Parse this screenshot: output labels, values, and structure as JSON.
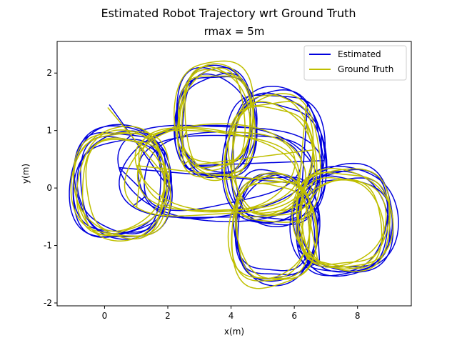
{
  "chart_data": {
    "type": "line",
    "title": "Estimated Robot Trajectory wrt Ground Truth",
    "subtitle": "rmax = 5m",
    "xlabel": "x(m)",
    "ylabel": "y(m)",
    "xlim": [
      -1.5,
      9.7
    ],
    "ylim": [
      -2.05,
      2.55
    ],
    "xticks": [
      0,
      2,
      4,
      6,
      8
    ],
    "yticks": [
      -2,
      -1,
      0,
      1,
      2
    ],
    "grid": false,
    "legend_position": "top-right",
    "series": [
      {
        "name": "Estimated",
        "color": "#0000dd",
        "loops": [
          {
            "cx": 0.5,
            "cy": 0.1,
            "rx": 1.45,
            "ry": 1.0,
            "laps": 6,
            "jitter": 0.12
          },
          {
            "cx": 3.5,
            "cy": 1.1,
            "rx": 1.2,
            "ry": 1.0,
            "laps": 6,
            "jitter": 0.12
          },
          {
            "cx": 5.4,
            "cy": 0.5,
            "rx": 1.5,
            "ry": 1.25,
            "laps": 5,
            "jitter": 0.12
          },
          {
            "cx": 7.6,
            "cy": -0.6,
            "rx": 1.45,
            "ry": 0.95,
            "laps": 6,
            "jitter": 0.12
          },
          {
            "cx": 5.4,
            "cy": -0.7,
            "rx": 1.3,
            "ry": 1.05,
            "laps": 5,
            "jitter": 0.12
          },
          {
            "cx": 3.6,
            "cy": 0.3,
            "rx": 2.9,
            "ry": 0.85,
            "laps": 4,
            "jitter": 0.15
          }
        ],
        "start": [
          0.15,
          1.45
        ]
      },
      {
        "name": "Ground Truth",
        "color": "#bfbf00",
        "loops": [
          {
            "cx": 0.55,
            "cy": 0.05,
            "rx": 1.4,
            "ry": 1.0,
            "laps": 6,
            "jitter": 0.13
          },
          {
            "cx": 3.5,
            "cy": 1.15,
            "rx": 1.15,
            "ry": 1.05,
            "laps": 6,
            "jitter": 0.13
          },
          {
            "cx": 5.3,
            "cy": 0.5,
            "rx": 1.45,
            "ry": 1.2,
            "laps": 5,
            "jitter": 0.13
          },
          {
            "cx": 7.5,
            "cy": -0.6,
            "rx": 1.4,
            "ry": 0.9,
            "laps": 6,
            "jitter": 0.13
          },
          {
            "cx": 5.3,
            "cy": -0.75,
            "rx": 1.25,
            "ry": 1.0,
            "laps": 5,
            "jitter": 0.13
          },
          {
            "cx": 3.5,
            "cy": 0.35,
            "rx": 2.85,
            "ry": 0.9,
            "laps": 4,
            "jitter": 0.16
          }
        ],
        "start": [
          0.1,
          1.4
        ]
      }
    ]
  }
}
